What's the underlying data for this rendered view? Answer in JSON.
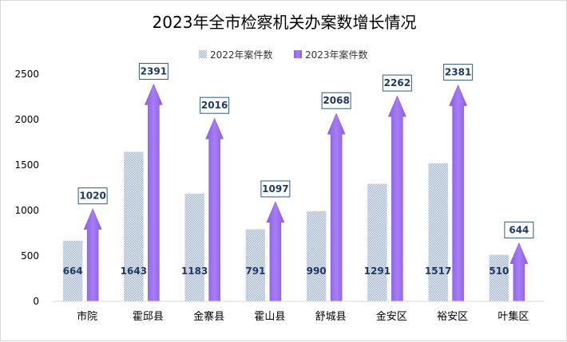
{
  "chart_data": {
    "type": "bar",
    "title": "2023年全市检察机关办案数增长情况",
    "categories": [
      "市院",
      "霍邱县",
      "金寨县",
      "霍山县",
      "舒城县",
      "金安区",
      "裕安区",
      "叶集区"
    ],
    "series": [
      {
        "name": "2022年案件数",
        "values": [
          664,
          1643,
          1183,
          791,
          990,
          1291,
          1517,
          510
        ],
        "color": "#b7c7db",
        "style": "dotted-pattern"
      },
      {
        "name": "2023年案件数",
        "values": [
          1020,
          2391,
          2016,
          1097,
          2068,
          2262,
          2381,
          644
        ],
        "color": "#9966ee",
        "style": "arrow"
      }
    ],
    "ylim": [
      0,
      2500
    ],
    "yticks": [
      0,
      500,
      1000,
      1500,
      2000,
      2500
    ],
    "grid": false,
    "legend": "top-center"
  }
}
